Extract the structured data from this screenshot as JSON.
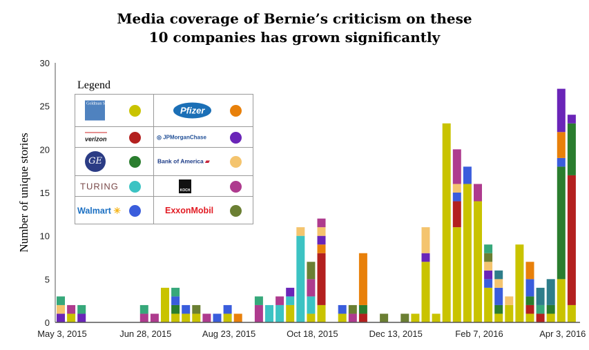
{
  "chart_data": {
    "type": "bar",
    "stacked": true,
    "title_lines": [
      "Media coverage of Bernie’s criticism on these",
      "10 companies has grown significantly"
    ],
    "ylabel": "Number of unique stories",
    "xlabel": "",
    "ylim": [
      0,
      30
    ],
    "yticks": [
      0,
      5,
      10,
      15,
      20,
      25,
      30
    ],
    "x_unit": "week index starting May 3, 2015",
    "xticks": [
      {
        "week": 0,
        "label": "May 3, 2015"
      },
      {
        "week": 8,
        "label": "Jun 28, 2015"
      },
      {
        "week": 16,
        "label": "Aug 23, 2015"
      },
      {
        "week": 24,
        "label": "Oct 18, 2015"
      },
      {
        "week": 32,
        "label": "Dec 13, 2015"
      },
      {
        "week": 40,
        "label": "Feb 7, 2016"
      },
      {
        "week": 48,
        "label": "Apr 3, 2016"
      }
    ],
    "legend_title": "Legend",
    "legend_placement": "top-left",
    "series": [
      {
        "key": "gs",
        "name": "Goldman Sachs",
        "color": "#c9c300"
      },
      {
        "key": "vz",
        "name": "verizon",
        "color": "#b3201f"
      },
      {
        "key": "ge",
        "name": "GE",
        "color": "#2a7d2e"
      },
      {
        "key": "tu",
        "name": "TURING",
        "color": "#3cc3c3"
      },
      {
        "key": "wm",
        "name": "Walmart",
        "color": "#3a5ddc"
      },
      {
        "key": "pf",
        "name": "Pfizer",
        "color": "#e8800a"
      },
      {
        "key": "jp",
        "name": "JPMorganChase",
        "color": "#6a25b8"
      },
      {
        "key": "ba",
        "name": "Bank of America",
        "color": "#f4c46e"
      },
      {
        "key": "ko",
        "name": "KOCH",
        "color": "#ae3b8e"
      },
      {
        "key": "xo",
        "name": "ExxonMobil",
        "color": "#6b7f33"
      },
      {
        "key": "sg",
        "name": "",
        "color": "#36a87a"
      },
      {
        "key": "tl",
        "name": "",
        "color": "#2e7d8a"
      }
    ],
    "legend_order": [
      "gs",
      "pf",
      "vz",
      "jp",
      "ge",
      "ba",
      "tu",
      "ko",
      "wm",
      "xo"
    ],
    "bars": [
      {
        "w": 0,
        "jp": 1,
        "ba": 1,
        "sg": 1
      },
      {
        "w": 1,
        "gs": 1,
        "ko": 1
      },
      {
        "w": 2,
        "jp": 1,
        "sg": 1
      },
      {
        "w": 8,
        "ko": 1,
        "sg": 1
      },
      {
        "w": 9,
        "ko": 1
      },
      {
        "w": 10,
        "gs": 4
      },
      {
        "w": 11,
        "gs": 1,
        "ge": 1,
        "wm": 1,
        "sg": 1
      },
      {
        "w": 12,
        "gs": 1,
        "wm": 1
      },
      {
        "w": 13,
        "gs": 1,
        "xo": 1
      },
      {
        "w": 14,
        "ko": 1
      },
      {
        "w": 15,
        "wm": 1
      },
      {
        "w": 16,
        "gs": 1,
        "wm": 1
      },
      {
        "w": 17,
        "pf": 1
      },
      {
        "w": 19,
        "ko": 2,
        "sg": 1
      },
      {
        "w": 20,
        "tu": 2
      },
      {
        "w": 21,
        "tu": 2,
        "ko": 1
      },
      {
        "w": 22,
        "gs": 2,
        "tu": 1,
        "jp": 1
      },
      {
        "w": 23,
        "tu": 10,
        "ba": 1
      },
      {
        "w": 24,
        "gs": 1,
        "tu": 2,
        "ko": 2,
        "xo": 2
      },
      {
        "w": 25,
        "gs": 2,
        "vz": 6,
        "pf": 1,
        "jp": 1,
        "ba": 1,
        "ko": 1
      },
      {
        "w": 27,
        "gs": 1,
        "wm": 1
      },
      {
        "w": 28,
        "ko": 1,
        "xo": 1
      },
      {
        "w": 29,
        "vz": 1,
        "ge": 1,
        "pf": 6
      },
      {
        "w": 31,
        "xo": 1
      },
      {
        "w": 33,
        "xo": 1
      },
      {
        "w": 34,
        "gs": 1
      },
      {
        "w": 35,
        "gs": 7,
        "jp": 1,
        "ba": 3
      },
      {
        "w": 36,
        "gs": 1
      },
      {
        "w": 37,
        "gs": 23
      },
      {
        "w": 38,
        "gs": 11,
        "vz": 3,
        "wm": 1,
        "ba": 1,
        "ko": 4
      },
      {
        "w": 39,
        "gs": 16,
        "wm": 2
      },
      {
        "w": 40,
        "gs": 14,
        "ko": 2
      },
      {
        "w": 41,
        "gs": 4,
        "wm": 1,
        "jp": 1,
        "ba": 1,
        "xo": 1,
        "sg": 1
      },
      {
        "w": 42,
        "gs": 1,
        "ge": 1,
        "wm": 2,
        "ba": 1,
        "tl": 1
      },
      {
        "w": 43,
        "gs": 2,
        "ba": 1
      },
      {
        "w": 44,
        "gs": 9
      },
      {
        "w": 45,
        "gs": 1,
        "vz": 1,
        "ge": 1,
        "wm": 2,
        "pf": 2
      },
      {
        "w": 46,
        "vz": 1,
        "sg": 1,
        "tl": 2
      },
      {
        "w": 47,
        "gs": 1,
        "ge": 1,
        "tl": 3
      },
      {
        "w": 48,
        "gs": 5,
        "ge": 13,
        "wm": 1,
        "pf": 3,
        "jp": 5
      },
      {
        "w": 49,
        "gs": 2,
        "vz": 15,
        "ge": 6,
        "jp": 1
      }
    ]
  }
}
